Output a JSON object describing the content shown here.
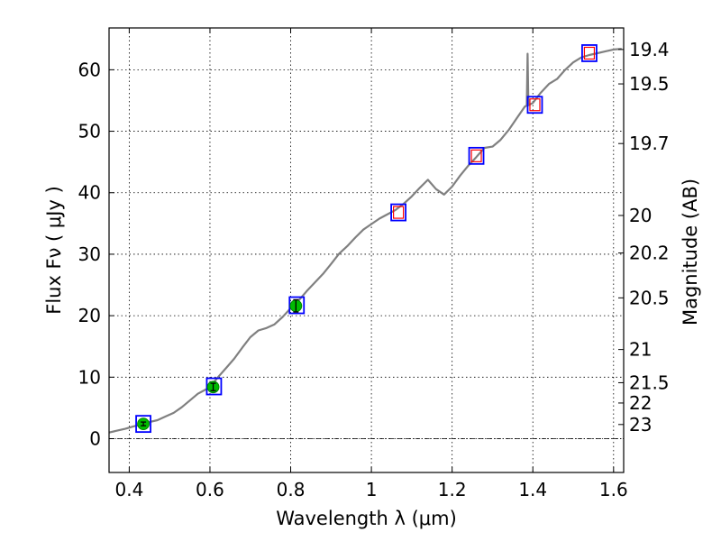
{
  "chart_data": {
    "type": "line",
    "xlabel": "Wavelength  λ (μm)",
    "ylabel": "Flux  Fν  ( μJy )",
    "y2label": "Magnitude (AB)",
    "xlim": [
      0.35,
      1.625
    ],
    "ylim": [
      -5.5,
      66.8
    ],
    "grid": true,
    "xticks": [
      {
        "value": 0.4,
        "label": "0.4"
      },
      {
        "value": 0.6,
        "label": "0.6"
      },
      {
        "value": 0.8,
        "label": "0.8"
      },
      {
        "value": 1.0,
        "label": "1"
      },
      {
        "value": 1.2,
        "label": "1.2"
      },
      {
        "value": 1.4,
        "label": "1.4"
      },
      {
        "value": 1.6,
        "label": "1.6"
      }
    ],
    "yticks": [
      {
        "value": 0,
        "label": "0"
      },
      {
        "value": 10,
        "label": "10"
      },
      {
        "value": 20,
        "label": "20"
      },
      {
        "value": 30,
        "label": "30"
      },
      {
        "value": 40,
        "label": "40"
      },
      {
        "value": 50,
        "label": "50"
      },
      {
        "value": 60,
        "label": "60"
      }
    ],
    "magnitude_ticks": [
      {
        "flux": 63.3,
        "label": "19.4"
      },
      {
        "flux": 57.7,
        "label": "19.5"
      },
      {
        "flux": 48.0,
        "label": "19.7"
      },
      {
        "flux": 36.3,
        "label": "20"
      },
      {
        "flux": 30.2,
        "label": "20.2"
      },
      {
        "flux": 22.9,
        "label": "20.5"
      },
      {
        "flux": 14.5,
        "label": "21"
      },
      {
        "flux": 9.1,
        "label": "21.5"
      },
      {
        "flux": 5.8,
        "label": "22"
      },
      {
        "flux": 2.3,
        "label": "23"
      }
    ],
    "zero_line": 0,
    "colors": {
      "spectrum": "#808080",
      "model_box": "#0000ff",
      "fit_box": "#ff0000",
      "photometry": "#00bb00",
      "grid": "#000000"
    },
    "spectrum": {
      "x": [
        0.35,
        0.37,
        0.39,
        0.41,
        0.43,
        0.45,
        0.47,
        0.49,
        0.51,
        0.53,
        0.55,
        0.57,
        0.59,
        0.6,
        0.62,
        0.64,
        0.66,
        0.68,
        0.7,
        0.72,
        0.74,
        0.76,
        0.78,
        0.8,
        0.82,
        0.84,
        0.86,
        0.88,
        0.9,
        0.92,
        0.94,
        0.96,
        0.98,
        1.0,
        1.02,
        1.04,
        1.06,
        1.08,
        1.1,
        1.12,
        1.14,
        1.16,
        1.18,
        1.2,
        1.22,
        1.24,
        1.26,
        1.28,
        1.3,
        1.32,
        1.34,
        1.36,
        1.38,
        1.4,
        1.42,
        1.44,
        1.46,
        1.48,
        1.5,
        1.52,
        1.54,
        1.56,
        1.58,
        1.6,
        1.62
      ],
      "y": [
        1.0,
        1.3,
        1.6,
        2.0,
        2.3,
        2.7,
        3.0,
        3.6,
        4.2,
        5.1,
        6.2,
        7.3,
        8.0,
        8.4,
        10.0,
        11.5,
        13.0,
        14.8,
        16.5,
        17.6,
        18.0,
        18.6,
        19.8,
        21.2,
        22.5,
        24.0,
        25.4,
        26.8,
        28.4,
        30.1,
        31.3,
        32.7,
        34.0,
        34.9,
        35.8,
        36.5,
        37.2,
        38.2,
        39.4,
        40.8,
        42.1,
        40.6,
        39.7,
        41.0,
        42.8,
        44.4,
        45.8,
        47.3,
        47.5,
        48.6,
        50.2,
        52.1,
        54.0,
        54.6,
        56.3,
        57.7,
        58.5,
        60.0,
        61.2,
        62.0,
        62.4,
        62.7,
        63.0,
        63.3,
        63.4
      ]
    },
    "spectrum_spike": {
      "x": 1.387,
      "y": 62.6
    },
    "model_points": [
      {
        "x": 0.435,
        "y": 2.4
      },
      {
        "x": 0.61,
        "y": 8.5
      },
      {
        "x": 0.815,
        "y": 21.7
      },
      {
        "x": 1.067,
        "y": 36.8
      },
      {
        "x": 1.26,
        "y": 46.0
      },
      {
        "x": 1.405,
        "y": 54.3
      },
      {
        "x": 1.54,
        "y": 62.7
      }
    ],
    "photometry_points": [
      {
        "x": 0.435,
        "y": 2.4,
        "err": 0.3
      },
      {
        "x": 0.608,
        "y": 8.4,
        "err": 0.6
      },
      {
        "x": 0.813,
        "y": 21.6,
        "err": 1.0
      }
    ]
  }
}
